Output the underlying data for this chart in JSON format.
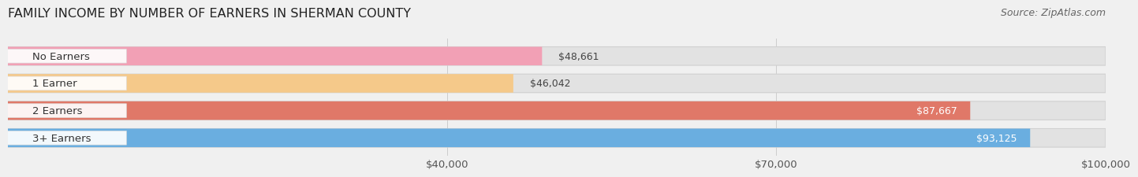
{
  "title": "FAMILY INCOME BY NUMBER OF EARNERS IN SHERMAN COUNTY",
  "source": "Source: ZipAtlas.com",
  "categories": [
    "No Earners",
    "1 Earner",
    "2 Earners",
    "3+ Earners"
  ],
  "values": [
    48661,
    46042,
    87667,
    93125
  ],
  "bar_colors": [
    "#f2a0b5",
    "#f5c98a",
    "#e07868",
    "#6aaee0"
  ],
  "label_colors": [
    "#444444",
    "#444444",
    "#ffffff",
    "#ffffff"
  ],
  "value_label_colors": [
    "#444444",
    "#444444",
    "#ffffff",
    "#ffffff"
  ],
  "xmin": 0,
  "xmax": 100000,
  "xticks": [
    40000,
    70000,
    100000
  ],
  "xtick_labels": [
    "$40,000",
    "$70,000",
    "$100,000"
  ],
  "background_color": "#f0f0f0",
  "bar_bg_color": "#e2e2e2",
  "title_fontsize": 11.5,
  "source_fontsize": 9,
  "label_fontsize": 9.5,
  "value_fontsize": 9,
  "bar_height": 0.68,
  "pill_rounding": 0.34
}
